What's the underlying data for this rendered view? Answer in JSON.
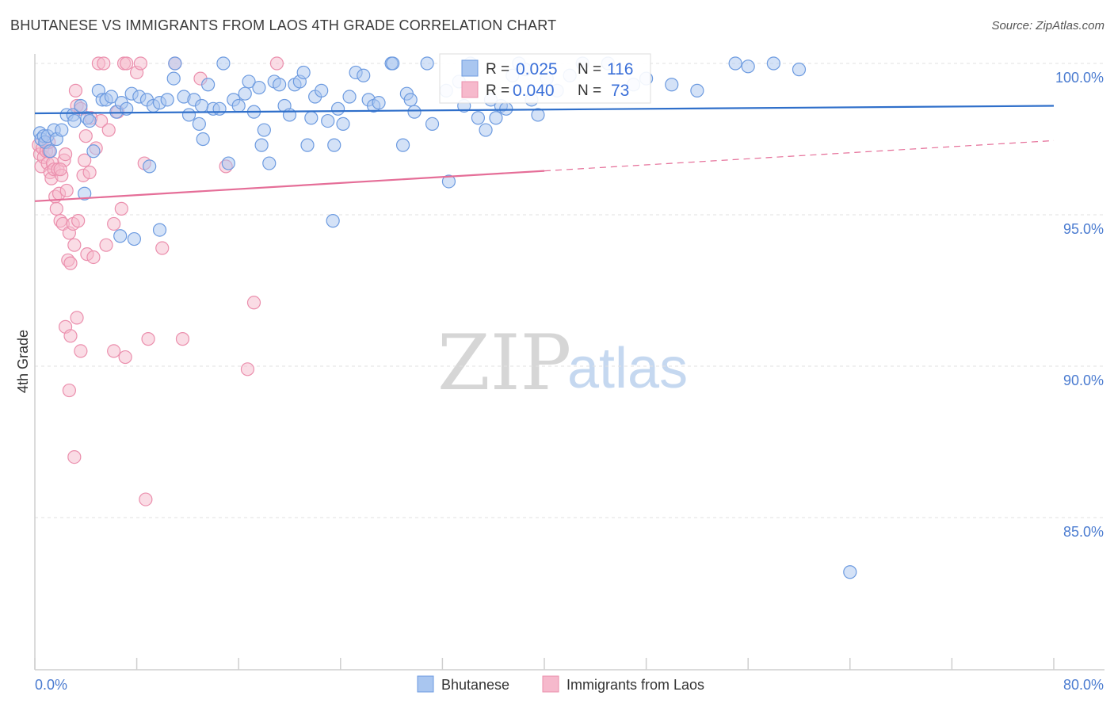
{
  "title": "BHUTANESE VS IMMIGRANTS FROM LAOS 4TH GRADE CORRELATION CHART",
  "source": "Source: ZipAtlas.com",
  "watermark": {
    "zip": "ZIP",
    "atlas": "atlas"
  },
  "colors": {
    "blue_fill": "#a9c6f0",
    "blue_stroke": "#6d9be0",
    "blue_line": "#2f6fca",
    "pink_fill": "#f6b9cc",
    "pink_stroke": "#eb8fad",
    "pink_line": "#e56e98",
    "tick_text": "#4a7bd0",
    "grid": "#e2e2e2"
  },
  "stats_legend": {
    "rows": [
      {
        "r_label": "R =",
        "r_value": "0.025",
        "n_label": "N =",
        "n_value": "116"
      },
      {
        "r_label": "R =",
        "r_value": "0.040",
        "n_label": "N =",
        "n_value": "73"
      }
    ]
  },
  "bottom_legend": [
    "Bhutanese",
    "Immigrants from Laos"
  ],
  "chart_data": {
    "type": "scatter",
    "title": "BHUTANESE VS IMMIGRANTS FROM LAOS 4TH GRADE CORRELATION CHART",
    "xlabel": "",
    "ylabel": "4th Grade",
    "xlim": [
      0,
      80
    ],
    "ylim": [
      80.5,
      100.8
    ],
    "x_ticks": [
      0,
      8,
      16,
      24,
      32,
      40,
      48,
      56,
      64,
      72,
      80
    ],
    "x_tick_labels": {
      "0": "0.0%",
      "80": "80.0%"
    },
    "y_gridlines": [
      85,
      90,
      95,
      100
    ],
    "y_tick_labels": [
      "85.0%",
      "90.0%",
      "95.0%",
      "100.0%"
    ],
    "legend_position": "top-center",
    "grid": true,
    "series": [
      {
        "name": "Bhutanese",
        "r": 0.025,
        "n": 116,
        "trend": {
          "x0": 0,
          "y0": 98.35,
          "x1": 80,
          "y1": 98.6
        },
        "points": [
          [
            0.4,
            97.7
          ],
          [
            0.5,
            97.5
          ],
          [
            0.7,
            97.6
          ],
          [
            0.8,
            97.4
          ],
          [
            1.0,
            97.6
          ],
          [
            1.2,
            97.1
          ],
          [
            1.5,
            97.8
          ],
          [
            1.7,
            97.5
          ],
          [
            2.1,
            97.8
          ],
          [
            2.5,
            98.3
          ],
          [
            3.0,
            98.3
          ],
          [
            3.1,
            98.1
          ],
          [
            3.6,
            98.6
          ],
          [
            4.1,
            98.2
          ],
          [
            4.3,
            98.1
          ],
          [
            4.6,
            97.1
          ],
          [
            5.0,
            99.1
          ],
          [
            5.3,
            98.8
          ],
          [
            5.6,
            98.8
          ],
          [
            6.0,
            98.9
          ],
          [
            6.4,
            98.4
          ],
          [
            6.8,
            98.7
          ],
          [
            7.2,
            98.5
          ],
          [
            7.6,
            99.0
          ],
          [
            8.2,
            98.9
          ],
          [
            8.8,
            98.8
          ],
          [
            9.3,
            98.6
          ],
          [
            9.8,
            98.7
          ],
          [
            10.4,
            98.8
          ],
          [
            10.9,
            99.5
          ],
          [
            11.0,
            100.0
          ],
          [
            11.7,
            98.9
          ],
          [
            12.1,
            98.3
          ],
          [
            12.5,
            98.8
          ],
          [
            12.9,
            98.0
          ],
          [
            13.2,
            97.5
          ],
          [
            13.6,
            99.3
          ],
          [
            14.0,
            98.5
          ],
          [
            14.5,
            98.5
          ],
          [
            14.8,
            100.0
          ],
          [
            15.2,
            96.7
          ],
          [
            15.6,
            98.8
          ],
          [
            16.0,
            98.6
          ],
          [
            16.5,
            99.0
          ],
          [
            16.8,
            99.4
          ],
          [
            17.2,
            98.4
          ],
          [
            17.6,
            99.2
          ],
          [
            18.0,
            97.8
          ],
          [
            18.4,
            96.7
          ],
          [
            18.8,
            99.4
          ],
          [
            19.2,
            99.3
          ],
          [
            19.6,
            98.6
          ],
          [
            20.0,
            98.3
          ],
          [
            20.4,
            99.3
          ],
          [
            20.8,
            99.4
          ],
          [
            21.1,
            99.7
          ],
          [
            21.4,
            97.3
          ],
          [
            21.7,
            98.2
          ],
          [
            22.0,
            98.9
          ],
          [
            22.5,
            99.1
          ],
          [
            23.0,
            98.1
          ],
          [
            23.5,
            97.3
          ],
          [
            23.8,
            98.5
          ],
          [
            24.2,
            98.0
          ],
          [
            24.7,
            98.9
          ],
          [
            25.2,
            99.7
          ],
          [
            25.8,
            99.6
          ],
          [
            26.2,
            98.8
          ],
          [
            26.6,
            98.6
          ],
          [
            27.0,
            98.7
          ],
          [
            28.0,
            100.0
          ],
          [
            28.1,
            100.0
          ],
          [
            28.9,
            97.3
          ],
          [
            29.2,
            99.0
          ],
          [
            29.5,
            98.8
          ],
          [
            29.8,
            98.4
          ],
          [
            30.8,
            100.0
          ],
          [
            31.2,
            98.0
          ],
          [
            32.3,
            99.1
          ],
          [
            32.5,
            96.1
          ],
          [
            33.3,
            99.4
          ],
          [
            33.7,
            98.6
          ],
          [
            34.2,
            100.0
          ],
          [
            34.8,
            98.2
          ],
          [
            35.4,
            97.8
          ],
          [
            35.8,
            98.8
          ],
          [
            36.2,
            98.2
          ],
          [
            36.6,
            98.6
          ],
          [
            37.0,
            98.5
          ],
          [
            37.5,
            99.6
          ],
          [
            38.0,
            100.0
          ],
          [
            38.5,
            99.8
          ],
          [
            39.0,
            98.8
          ],
          [
            39.5,
            98.3
          ],
          [
            40.2,
            99.5
          ],
          [
            41.0,
            99.1
          ],
          [
            42.0,
            99.6
          ],
          [
            43.0,
            100.0
          ],
          [
            45.0,
            100.0
          ],
          [
            47.0,
            99.3
          ],
          [
            48.0,
            99.5
          ],
          [
            50.0,
            99.3
          ],
          [
            52.0,
            99.1
          ],
          [
            55.0,
            100.0
          ],
          [
            56.0,
            99.9
          ],
          [
            58.0,
            100.0
          ],
          [
            60.0,
            99.8
          ],
          [
            64.0,
            83.2
          ],
          [
            3.9,
            95.7
          ],
          [
            6.7,
            94.3
          ],
          [
            7.8,
            94.2
          ],
          [
            9.0,
            96.6
          ],
          [
            9.8,
            94.5
          ],
          [
            23.4,
            94.8
          ],
          [
            13.1,
            98.6
          ],
          [
            17.8,
            97.3
          ]
        ]
      },
      {
        "name": "Immigrants from Laos",
        "r": 0.04,
        "n": 73,
        "trend": {
          "x0": 0,
          "y0": 95.45,
          "x1": 40,
          "y1": 96.45
        },
        "trend_dashed": {
          "x0": 40,
          "y0": 96.45,
          "x1": 80,
          "y1": 97.45
        },
        "points": [
          [
            0.3,
            97.3
          ],
          [
            0.4,
            97.0
          ],
          [
            0.5,
            96.6
          ],
          [
            0.6,
            97.2
          ],
          [
            0.7,
            96.9
          ],
          [
            0.8,
            97.4
          ],
          [
            0.9,
            97.1
          ],
          [
            1.0,
            96.7
          ],
          [
            1.1,
            97.1
          ],
          [
            1.2,
            96.4
          ],
          [
            1.3,
            96.2
          ],
          [
            1.4,
            96.7
          ],
          [
            1.5,
            96.5
          ],
          [
            1.6,
            95.6
          ],
          [
            1.7,
            95.2
          ],
          [
            1.8,
            96.5
          ],
          [
            1.9,
            95.7
          ],
          [
            2.0,
            94.8
          ],
          [
            2.1,
            96.3
          ],
          [
            2.2,
            94.7
          ],
          [
            2.3,
            96.8
          ],
          [
            2.4,
            97.0
          ],
          [
            2.5,
            95.8
          ],
          [
            2.6,
            93.5
          ],
          [
            2.7,
            94.4
          ],
          [
            2.8,
            93.4
          ],
          [
            3.0,
            94.7
          ],
          [
            3.1,
            94.0
          ],
          [
            3.2,
            99.1
          ],
          [
            3.3,
            98.6
          ],
          [
            3.4,
            94.8
          ],
          [
            3.6,
            98.5
          ],
          [
            3.8,
            96.3
          ],
          [
            3.9,
            96.8
          ],
          [
            4.0,
            97.6
          ],
          [
            4.1,
            93.7
          ],
          [
            4.3,
            96.4
          ],
          [
            4.4,
            98.2
          ],
          [
            4.6,
            93.6
          ],
          [
            4.8,
            97.2
          ],
          [
            5.0,
            100.0
          ],
          [
            5.2,
            98.1
          ],
          [
            5.4,
            100.0
          ],
          [
            5.6,
            94.0
          ],
          [
            5.8,
            97.8
          ],
          [
            6.2,
            94.7
          ],
          [
            6.5,
            98.4
          ],
          [
            6.8,
            95.2
          ],
          [
            7.0,
            100.0
          ],
          [
            7.2,
            100.0
          ],
          [
            8.0,
            99.7
          ],
          [
            8.3,
            100.0
          ],
          [
            8.6,
            96.7
          ],
          [
            10.0,
            93.9
          ],
          [
            11.0,
            100.0
          ],
          [
            13.0,
            99.5
          ],
          [
            15.0,
            96.6
          ],
          [
            19.0,
            100.0
          ],
          [
            2.4,
            91.3
          ],
          [
            2.8,
            91.0
          ],
          [
            3.3,
            91.6
          ],
          [
            3.6,
            90.5
          ],
          [
            6.2,
            90.5
          ],
          [
            7.1,
            90.3
          ],
          [
            8.9,
            90.9
          ],
          [
            11.6,
            90.9
          ],
          [
            16.7,
            89.9
          ],
          [
            2.7,
            89.2
          ],
          [
            3.1,
            87.0
          ],
          [
            8.7,
            85.6
          ],
          [
            17.2,
            92.1
          ],
          [
            1.1,
            97.4
          ],
          [
            2.0,
            96.5
          ]
        ]
      }
    ]
  }
}
